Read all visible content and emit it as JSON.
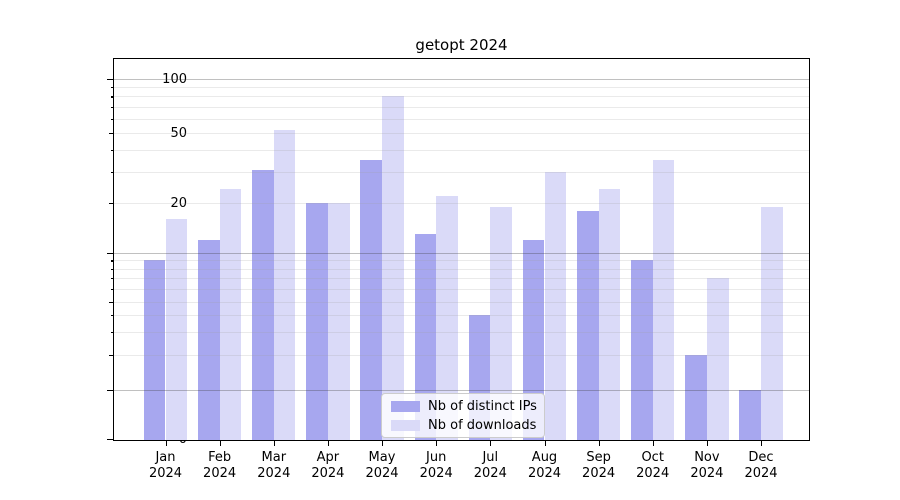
{
  "title": "getopt 2024",
  "colors": {
    "bar_distinct_ips": "#a7a7ef",
    "bar_downloads": "#dadaf8",
    "grid_major": "#b3b3b3",
    "grid_minor": "#e8e8e8",
    "axis": "#000000",
    "legend_border": "#cccccc"
  },
  "chart_data": {
    "type": "bar",
    "title": "getopt 2024",
    "categories": [
      "Jan 2024",
      "Feb 2024",
      "Mar 2024",
      "Apr 2024",
      "May 2024",
      "Jun 2024",
      "Jul 2024",
      "Aug 2024",
      "Sep 2024",
      "Oct 2024",
      "Nov 2024",
      "Dec 2024"
    ],
    "series": [
      {
        "name": "Nb of distinct IPs",
        "color": "#a7a7ef",
        "values": [
          9,
          12,
          31,
          20,
          35,
          13,
          4,
          12,
          18,
          9,
          2,
          1
        ]
      },
      {
        "name": "Nb of downloads",
        "color": "#dadaf8",
        "values": [
          16,
          24,
          52,
          20,
          80,
          22,
          19,
          30,
          24,
          35,
          7,
          19
        ]
      }
    ],
    "xlabel": "",
    "ylabel": "",
    "yscale": "symlog",
    "yticks": [
      0,
      1,
      2,
      5,
      10,
      20,
      50,
      100
    ],
    "ylim": [
      0,
      130
    ],
    "grid": "both",
    "legend_position": "lower center"
  },
  "legend": {
    "items": [
      {
        "label": "Nb of distinct IPs",
        "color": "#a7a7ef"
      },
      {
        "label": "Nb of downloads",
        "color": "#dadaf8"
      }
    ]
  }
}
